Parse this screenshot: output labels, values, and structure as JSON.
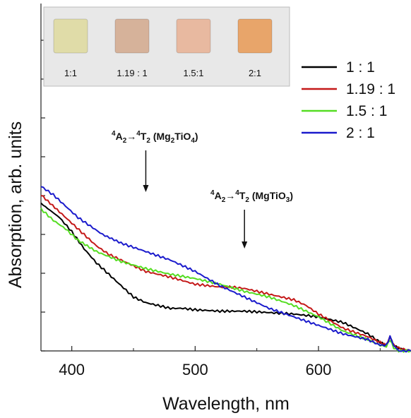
{
  "chart_data": {
    "type": "line",
    "xlabel": "Wavelength, nm",
    "ylabel": "Absorption, arb. units",
    "xlim": [
      375,
      675
    ],
    "ylim": [
      0,
      1
    ],
    "xticks": [
      400,
      500,
      600
    ],
    "y_tick_labels_shown": false,
    "grid": false,
    "legend_position": "top-right",
    "series": [
      {
        "name": "1 : 1",
        "color": "#000000",
        "x": [
          375,
          390,
          400,
          410,
          420,
          430,
          440,
          450,
          460,
          470,
          480,
          490,
          500,
          520,
          540,
          560,
          580,
          600,
          620,
          640,
          650,
          655,
          658,
          661,
          665,
          675
        ],
        "y": [
          0.52,
          0.47,
          0.42,
          0.36,
          0.31,
          0.27,
          0.23,
          0.19,
          0.17,
          0.16,
          0.15,
          0.15,
          0.145,
          0.14,
          0.14,
          0.135,
          0.13,
          0.12,
          0.1,
          0.06,
          0.03,
          0.02,
          0.05,
          0.02,
          0.01,
          0.0
        ]
      },
      {
        "name": "1.19 : 1",
        "color": "#c41818",
        "x": [
          375,
          390,
          400,
          410,
          420,
          430,
          440,
          460,
          480,
          500,
          520,
          530,
          540,
          550,
          560,
          580,
          590,
          600,
          620,
          640,
          650,
          655,
          658,
          661,
          665,
          675
        ],
        "y": [
          0.55,
          0.49,
          0.45,
          0.41,
          0.37,
          0.34,
          0.32,
          0.28,
          0.26,
          0.235,
          0.225,
          0.225,
          0.22,
          0.21,
          0.2,
          0.18,
          0.16,
          0.13,
          0.08,
          0.05,
          0.03,
          0.02,
          0.05,
          0.02,
          0.01,
          0.0
        ]
      },
      {
        "name": "1.5 : 1",
        "color": "#55dd22",
        "x": [
          375,
          385,
          395,
          405,
          420,
          440,
          460,
          480,
          500,
          520,
          540,
          560,
          580,
          600,
          620,
          640,
          650,
          655,
          658,
          661,
          665,
          675
        ],
        "y": [
          0.5,
          0.46,
          0.43,
          0.39,
          0.35,
          0.315,
          0.29,
          0.27,
          0.255,
          0.235,
          0.21,
          0.19,
          0.16,
          0.12,
          0.07,
          0.04,
          0.02,
          0.015,
          0.04,
          0.01,
          0.0,
          0.0
        ]
      },
      {
        "name": "2 : 1",
        "color": "#1a1acc",
        "x": [
          375,
          385,
          395,
          405,
          415,
          425,
          440,
          460,
          480,
          500,
          520,
          540,
          560,
          580,
          600,
          620,
          640,
          650,
          655,
          658,
          661,
          665,
          675
        ],
        "y": [
          0.58,
          0.55,
          0.51,
          0.47,
          0.44,
          0.41,
          0.38,
          0.35,
          0.32,
          0.28,
          0.23,
          0.19,
          0.15,
          0.12,
          0.09,
          0.06,
          0.04,
          0.02,
          0.02,
          0.05,
          0.02,
          0.0,
          0.0
        ]
      }
    ],
    "annotations": [
      {
        "pre": "4",
        "main1": "A",
        "sub1": "2",
        "arrow": "→",
        "pre2": "4",
        "main2": "T",
        "sub2": "2",
        "formula_prefix": " (Mg",
        "formula_sub": "2",
        "formula_suffix": "TiO",
        "formula_sub2": "4",
        "close": ")",
        "x_target": 460
      },
      {
        "pre": "4",
        "main1": "A",
        "sub1": "2",
        "arrow": "→",
        "pre2": "4",
        "main2": "T",
        "sub2": "2",
        "formula_prefix": " (MgTiO",
        "formula_sub": "3",
        "formula_suffix": "",
        "formula_sub2": "",
        "close": ")",
        "x_target": 540
      }
    ],
    "inset_samples": [
      {
        "label": "1:1",
        "color": "#e0dca8"
      },
      {
        "label": "1.19 : 1",
        "color": "#d6b29a"
      },
      {
        "label": "1.5:1",
        "color": "#e8b9a0"
      },
      {
        "label": "2:1",
        "color": "#e8a56a"
      }
    ]
  }
}
